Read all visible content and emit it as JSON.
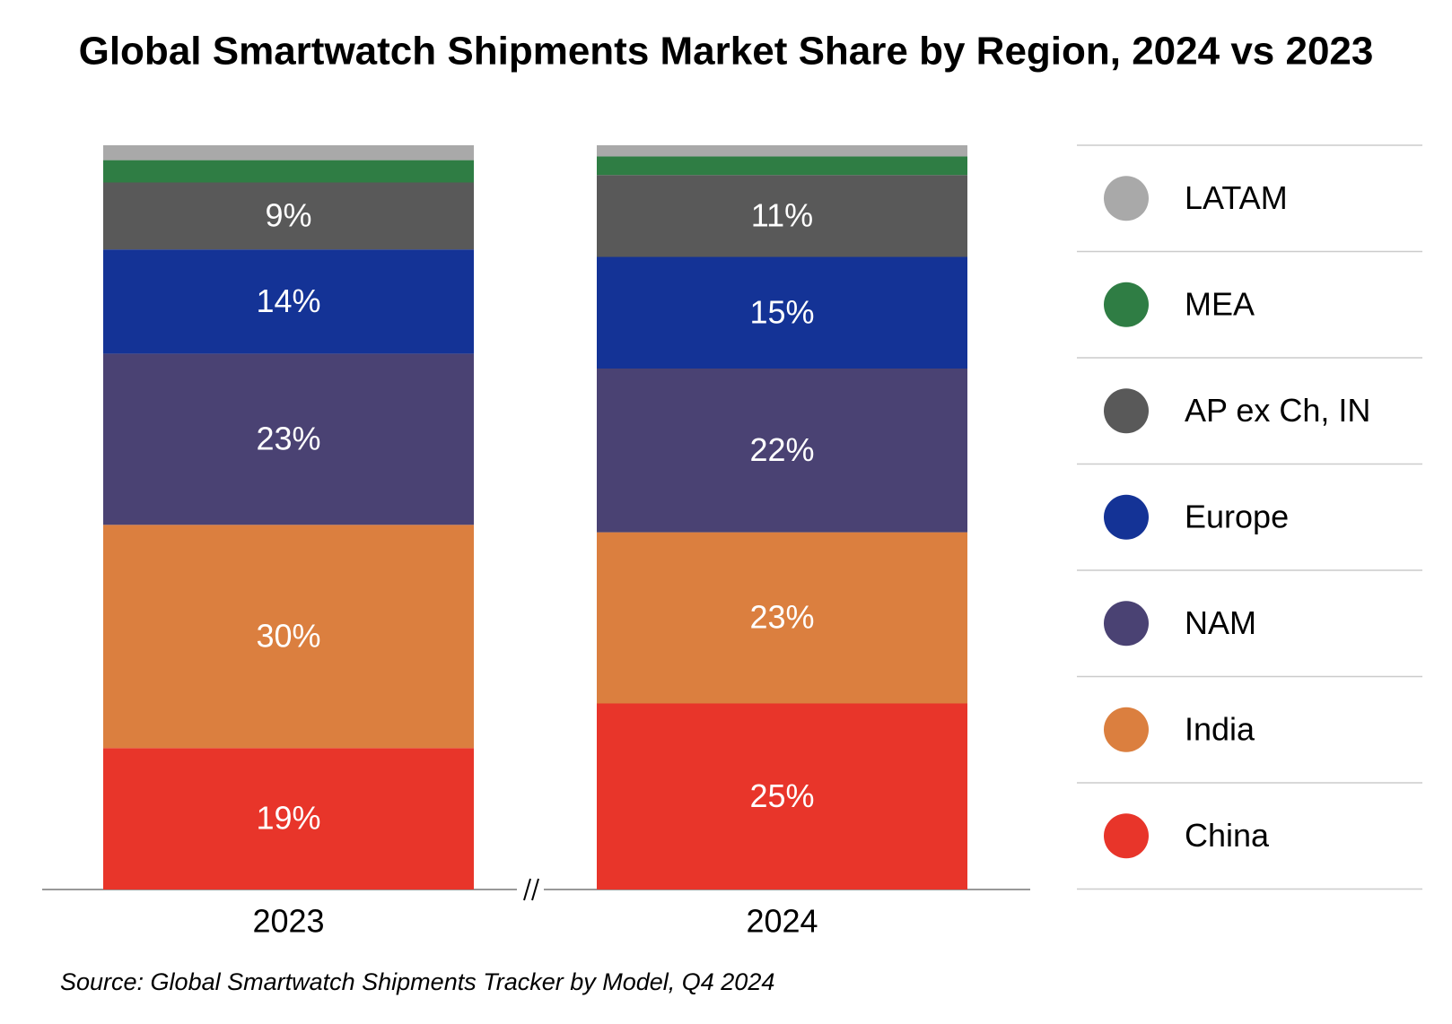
{
  "chart_data": {
    "type": "stacked_bar",
    "title": "Global Smartwatch Shipments Market Share by Region, 2024 vs 2023",
    "source": "Source: Global Smartwatch Shipments Tracker by Model, Q4 2024",
    "categories": [
      "2023",
      "2024"
    ],
    "ylim": [
      0,
      100
    ],
    "series": [
      {
        "name": "China",
        "color": "#e8352a",
        "values": [
          19,
          25
        ],
        "value_labels": [
          "19%",
          "25%"
        ]
      },
      {
        "name": "India",
        "color": "#db7f3f",
        "values": [
          30,
          23
        ],
        "value_labels": [
          "30%",
          "23%"
        ]
      },
      {
        "name": "NAM",
        "color": "#4a4273",
        "values": [
          23,
          22
        ],
        "value_labels": [
          "23%",
          "22%"
        ]
      },
      {
        "name": "Europe",
        "color": "#143396",
        "values": [
          14,
          15
        ],
        "value_labels": [
          "14%",
          "15%"
        ]
      },
      {
        "name": "AP ex Ch, IN",
        "color": "#595959",
        "values": [
          9,
          11
        ],
        "value_labels": [
          "9%",
          "11%"
        ]
      },
      {
        "name": "MEA",
        "color": "#2f7d44",
        "values": [
          3,
          2.5
        ],
        "value_labels": [
          null,
          null
        ]
      },
      {
        "name": "LATAM",
        "color": "#a9a9a9",
        "values": [
          2,
          1.5
        ],
        "value_labels": [
          null,
          null
        ]
      }
    ],
    "legend": "right"
  }
}
